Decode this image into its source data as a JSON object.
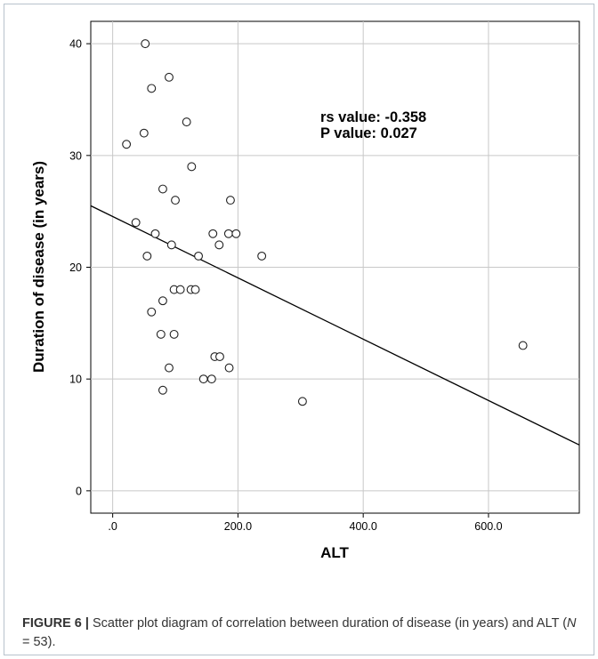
{
  "chart_data": {
    "type": "scatter",
    "xlabel": "ALT",
    "ylabel": "Duration of disease (in years)",
    "xlim": [
      -35,
      745
    ],
    "ylim": [
      -2,
      42
    ],
    "x_ticks": [
      0,
      200,
      400,
      600
    ],
    "x_tick_labels": [
      ".0",
      "200.0",
      "400.0",
      "600.0"
    ],
    "y_ticks": [
      0,
      10,
      20,
      30,
      40
    ],
    "y_tick_labels": [
      "0",
      "10",
      "20",
      "30",
      "40"
    ],
    "grid": true,
    "points": [
      {
        "x": 52,
        "y": 40
      },
      {
        "x": 90,
        "y": 37
      },
      {
        "x": 62,
        "y": 36
      },
      {
        "x": 118,
        "y": 33
      },
      {
        "x": 50,
        "y": 32
      },
      {
        "x": 22,
        "y": 31
      },
      {
        "x": 126,
        "y": 29
      },
      {
        "x": 80,
        "y": 27
      },
      {
        "x": 188,
        "y": 26
      },
      {
        "x": 100,
        "y": 26
      },
      {
        "x": 37,
        "y": 24
      },
      {
        "x": 68,
        "y": 23
      },
      {
        "x": 160,
        "y": 23
      },
      {
        "x": 185,
        "y": 23
      },
      {
        "x": 197,
        "y": 23
      },
      {
        "x": 94,
        "y": 22
      },
      {
        "x": 170,
        "y": 22
      },
      {
        "x": 55,
        "y": 21
      },
      {
        "x": 137,
        "y": 21
      },
      {
        "x": 238,
        "y": 21
      },
      {
        "x": 98,
        "y": 18
      },
      {
        "x": 108,
        "y": 18
      },
      {
        "x": 125,
        "y": 18
      },
      {
        "x": 132,
        "y": 18
      },
      {
        "x": 80,
        "y": 17
      },
      {
        "x": 62,
        "y": 16
      },
      {
        "x": 77,
        "y": 14
      },
      {
        "x": 98,
        "y": 14
      },
      {
        "x": 655,
        "y": 13
      },
      {
        "x": 163,
        "y": 12
      },
      {
        "x": 171,
        "y": 12
      },
      {
        "x": 90,
        "y": 11
      },
      {
        "x": 186,
        "y": 11
      },
      {
        "x": 145,
        "y": 10
      },
      {
        "x": 158,
        "y": 10
      },
      {
        "x": 80,
        "y": 9
      },
      {
        "x": 303,
        "y": 8
      }
    ],
    "fit_line": {
      "x": [
        -35,
        745
      ],
      "y": [
        25.5,
        4.1
      ]
    },
    "annotations": [
      "rs value: -0.358",
      "P value: 0.027"
    ]
  },
  "caption": {
    "label": "FIGURE 6 |",
    "text_before": " Scatter plot diagram of correlation between duration of disease (in years) and ALT (",
    "n_symbol": "N",
    "text_after": " = 53)."
  },
  "colors": {
    "plot_background": "#ffffff",
    "grid": "#c8c8c8",
    "axis": "#000000",
    "marker_stroke": "#222222",
    "fit_line": "#000000",
    "frame_border": "#b8c2cc"
  }
}
